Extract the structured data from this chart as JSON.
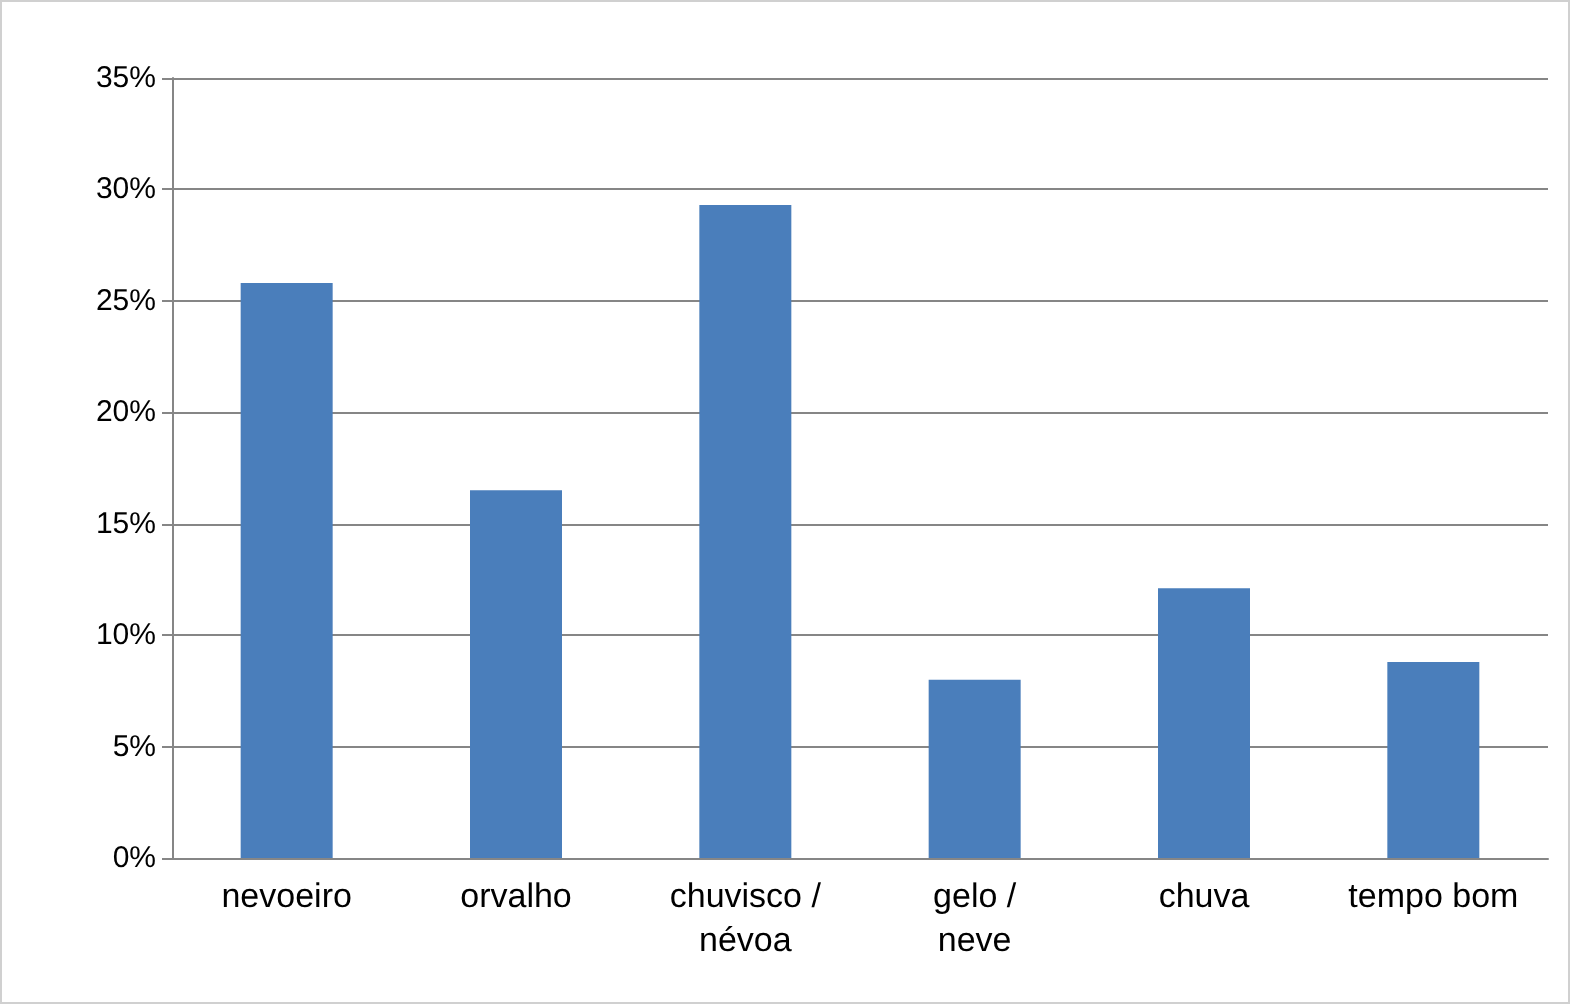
{
  "chart_data": {
    "type": "bar",
    "categories": [
      "nevoeiro",
      "orvalho",
      "chuvisco / névoa",
      "gelo / neve",
      "chuva",
      "tempo bom"
    ],
    "values": [
      25.8,
      16.5,
      29.3,
      8.0,
      12.1,
      8.8
    ],
    "color": "#4a7ebb",
    "ylim": [
      0,
      35
    ],
    "yticks": [
      {
        "value": 0,
        "label": "0%"
      },
      {
        "value": 5,
        "label": "5%"
      },
      {
        "value": 10,
        "label": "10%"
      },
      {
        "value": 15,
        "label": "15%"
      },
      {
        "value": 20,
        "label": "20%"
      },
      {
        "value": 25,
        "label": "25%"
      },
      {
        "value": 30,
        "label": "30%"
      },
      {
        "value": 35,
        "label": "35%"
      }
    ],
    "grid": "y"
  }
}
